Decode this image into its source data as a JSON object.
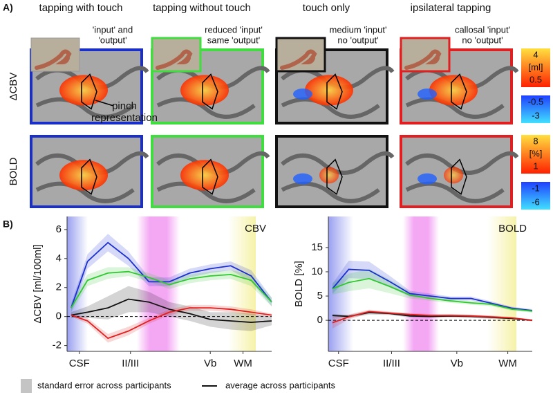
{
  "panel_a": {
    "label": "A)",
    "columns": [
      "tapping with touch",
      "tapping without touch",
      "touch only",
      "ipsilateral tapping"
    ],
    "annotations": [
      [
        "'input' and",
        "'output'"
      ],
      [
        "reduced 'input'",
        "same 'output'"
      ],
      [
        "medium 'input'",
        "no 'output'"
      ],
      [
        "callosal 'input'",
        "no 'output'"
      ]
    ],
    "pinch": [
      "pinch",
      "representation"
    ],
    "row_labels": [
      "ΔCBV",
      "BOLD"
    ],
    "colorbars": [
      {
        "pos_top": 4,
        "unit": "[ml]",
        "pos_bottom": 0.5,
        "neg_top": -0.5,
        "neg_bottom": -3
      },
      {
        "pos_top": 8,
        "unit": "[%]",
        "pos_bottom": 1,
        "neg_top": -1,
        "neg_bottom": -6
      }
    ]
  },
  "panel_b_label": "B)",
  "legend": {
    "band": "standard error across participants",
    "line": "average across participants"
  },
  "chart_data": [
    {
      "type": "line",
      "title": "CBV",
      "y_label": "ΔCBV [ml/100ml]",
      "x": [
        0.02,
        0.1,
        0.2,
        0.3,
        0.4,
        0.5,
        0.6,
        0.7,
        0.8,
        0.9,
        1.0
      ],
      "xlim": [
        0,
        1
      ],
      "xticks": [
        {
          "value": 0.06,
          "label": "CSF"
        },
        {
          "value": 0.31,
          "label": "II/III"
        },
        {
          "value": 0.7,
          "label": "Vb"
        },
        {
          "value": 0.86,
          "label": "WM"
        }
      ],
      "ylim": [
        -2.4,
        6.9
      ],
      "yticks": [
        -2,
        0,
        2,
        4,
        6
      ],
      "series": [
        {
          "name": "tapping with touch",
          "color": "#1a2fd0",
          "values": [
            0.6,
            3.8,
            5.1,
            4.0,
            2.4,
            2.4,
            3.0,
            3.3,
            3.5,
            2.8,
            1.0
          ],
          "errors": [
            0.3,
            0.5,
            0.6,
            0.5,
            0.3,
            0.3,
            0.3,
            0.3,
            0.3,
            0.4,
            0.3
          ]
        },
        {
          "name": "tapping without touch",
          "color": "#30c830",
          "values": [
            0.6,
            2.5,
            3.0,
            3.1,
            2.7,
            2.2,
            2.6,
            2.8,
            2.9,
            2.5,
            1.0
          ],
          "errors": [
            0.3,
            0.4,
            0.4,
            0.3,
            0.3,
            0.3,
            0.3,
            0.3,
            0.3,
            0.4,
            0.3
          ]
        },
        {
          "name": "touch only",
          "color": "#111111",
          "values": [
            0.1,
            0.3,
            0.6,
            1.2,
            1.0,
            0.5,
            0.2,
            -0.2,
            -0.3,
            -0.4,
            -0.3
          ],
          "errors": [
            0.2,
            0.4,
            0.8,
            0.9,
            0.7,
            0.5,
            0.5,
            0.5,
            0.6,
            0.6,
            0.3
          ]
        },
        {
          "name": "ipsilateral tapping",
          "color": "#e02020",
          "values": [
            0.1,
            -0.3,
            -1.5,
            -1.0,
            -0.3,
            0.3,
            0.6,
            0.6,
            0.5,
            0.3,
            0.1
          ],
          "errors": [
            0.1,
            0.2,
            0.3,
            0.3,
            0.2,
            0.2,
            0.2,
            0.2,
            0.2,
            0.2,
            0.1
          ]
        }
      ]
    },
    {
      "type": "line",
      "title": "BOLD",
      "y_label": "BOLD [%]",
      "x": [
        0.02,
        0.1,
        0.2,
        0.3,
        0.4,
        0.5,
        0.6,
        0.7,
        0.8,
        0.9,
        1.0
      ],
      "xlim": [
        0,
        1
      ],
      "xticks": [
        {
          "value": 0.05,
          "label": "CSF"
        },
        {
          "value": 0.31,
          "label": "II/III"
        },
        {
          "value": 0.63,
          "label": "Vb"
        },
        {
          "value": 0.88,
          "label": "WM"
        }
      ],
      "ylim": [
        -6.4,
        21.4
      ],
      "yticks": [
        0,
        5,
        10,
        15
      ],
      "series": [
        {
          "name": "tapping with touch",
          "color": "#1a2fd0",
          "values": [
            6.5,
            10.5,
            10.3,
            8.0,
            5.5,
            5.0,
            4.5,
            4.5,
            3.5,
            2.5,
            2.0
          ],
          "errors": [
            1.0,
            1.8,
            1.8,
            1.2,
            0.6,
            0.5,
            0.4,
            0.4,
            0.4,
            0.3,
            0.3
          ]
        },
        {
          "name": "tapping without touch",
          "color": "#30c830",
          "values": [
            6.5,
            7.8,
            8.6,
            7.0,
            5.2,
            4.5,
            4.0,
            3.6,
            3.3,
            2.3,
            1.9
          ],
          "errors": [
            1.2,
            1.8,
            2.0,
            1.4,
            0.7,
            0.5,
            0.4,
            0.4,
            0.4,
            0.3,
            0.3
          ]
        },
        {
          "name": "touch only",
          "color": "#111111",
          "values": [
            1.0,
            0.8,
            1.6,
            1.4,
            0.9,
            0.8,
            0.9,
            0.8,
            0.6,
            0.4,
            0.0
          ],
          "errors": [
            0.3,
            0.3,
            0.4,
            0.3,
            0.3,
            0.3,
            0.3,
            0.3,
            0.3,
            0.2,
            0.2
          ]
        },
        {
          "name": "ipsilateral tapping",
          "color": "#e02020",
          "values": [
            -0.5,
            0.7,
            1.8,
            1.5,
            1.2,
            1.0,
            1.0,
            0.9,
            0.7,
            0.5,
            0.0
          ],
          "errors": [
            1.2,
            0.5,
            0.4,
            0.3,
            0.3,
            0.3,
            0.3,
            0.3,
            0.3,
            0.2,
            0.2
          ]
        }
      ]
    }
  ]
}
